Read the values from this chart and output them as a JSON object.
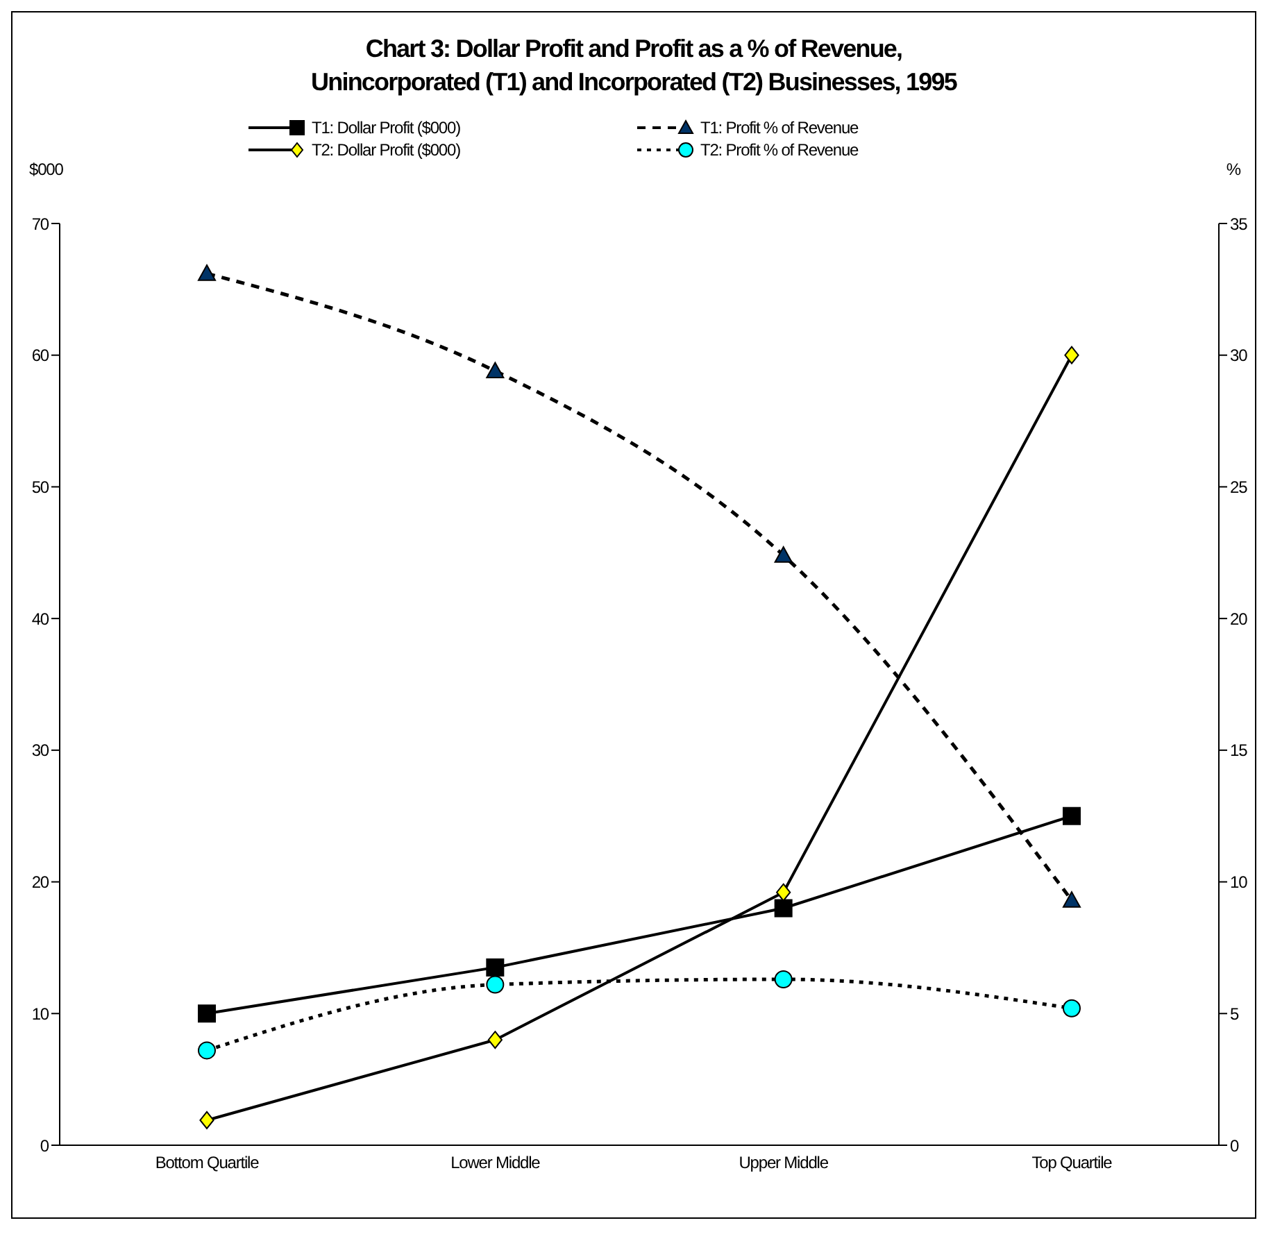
{
  "chart_data": {
    "type": "line",
    "title": "Chart 3: Dollar Profit and Profit as a % of Revenue,\nUnincorporated (T1) and Incorporated (T2) Businesses, 1995",
    "ylabel": "$000",
    "y2label": "%",
    "categories": [
      "Bottom Quartile",
      "Lower Middle",
      "Upper Middle",
      "Top Quartile"
    ],
    "series": [
      {
        "name": "T1: Dollar Profit ($000)",
        "color": "#000000",
        "marker": "square",
        "line_style": "solid",
        "values": [
          10,
          13.5,
          18,
          25
        ]
      },
      {
        "name": "T2: Dollar Profit ($000)",
        "color": "#ffff00",
        "marker": "diamond",
        "line_style": "solid",
        "values": [
          1.9,
          8,
          19.2,
          60
        ]
      },
      {
        "name": "T1: Profit % of Revenue",
        "color": "#003366",
        "marker": "triangle",
        "line_style": "dashed",
        "axis": "y2",
        "values": [
          33.1,
          29.4,
          22.4,
          9.3
        ]
      },
      {
        "name": "T2: Profit % of Revenue",
        "color": "#00ffff",
        "marker": "circle",
        "line_style": "dotted",
        "axis": "y2",
        "values": [
          3.6,
          6.1,
          6.3,
          5.2
        ]
      }
    ],
    "ylim": [
      0,
      70
    ],
    "yticks": [
      0,
      10,
      20,
      30,
      40,
      50,
      60,
      70
    ],
    "y2lim": [
      0,
      35
    ],
    "y2ticks": [
      0,
      5,
      10,
      15,
      20,
      25,
      30,
      35
    ],
    "legend": "top",
    "grid": false
  }
}
